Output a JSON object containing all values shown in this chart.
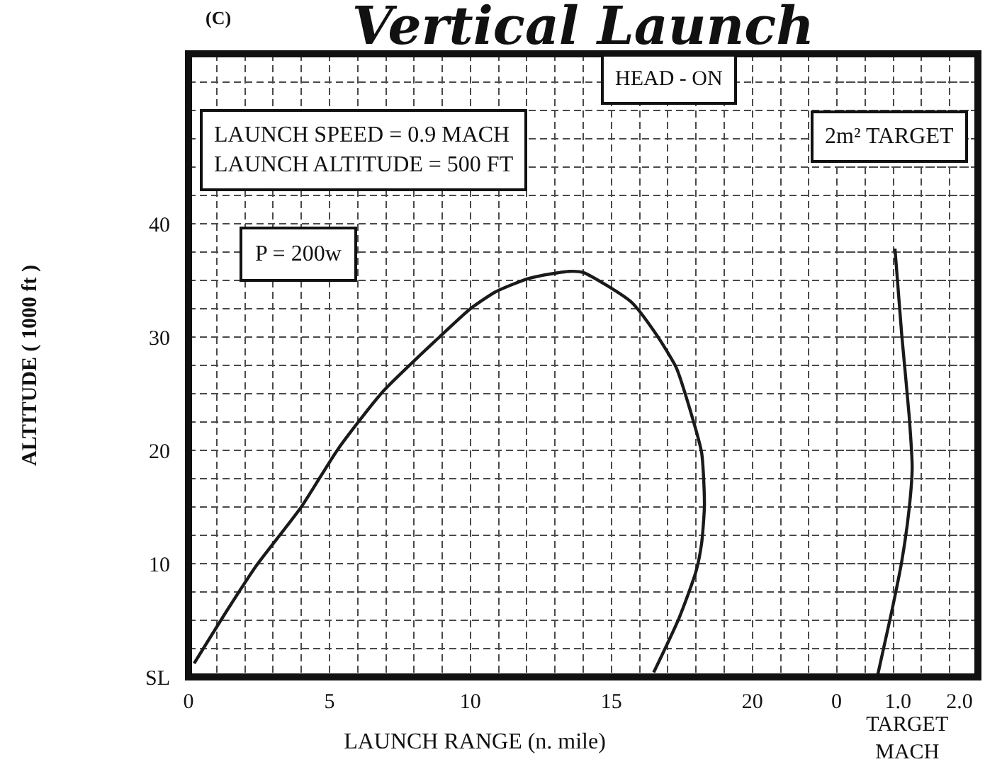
{
  "chart_data": {
    "type": "line",
    "title": "Vertical Launch",
    "xlabel": "LAUNCH RANGE (n. mile)",
    "x2label": "TARGET\nMACH",
    "ylabel": "ALTITUDE ( 1000 ft )",
    "annotations": [
      "(C)",
      "HEAD - ON",
      "LAUNCH SPEED = 0.9 MACH\nLAUNCH ALTITUDE = 500 FT",
      "2m² TARGET",
      "P = 200w"
    ],
    "xlim": [
      0,
      28
    ],
    "xticks": [
      0,
      {
        "value": 1,
        "label": null
      },
      {
        "value": 2,
        "label": null
      },
      {
        "value": 3,
        "label": null
      },
      {
        "value": 4,
        "label": null
      },
      5,
      {
        "value": 6,
        "label": null
      },
      {
        "value": 7,
        "label": null
      },
      {
        "value": 8,
        "label": null
      },
      {
        "value": 9,
        "label": null
      },
      10,
      {
        "value": 11,
        "label": null
      },
      {
        "value": 12,
        "label": null
      },
      {
        "value": 13,
        "label": null
      },
      {
        "value": 14,
        "label": null
      },
      15,
      {
        "value": 16,
        "label": null
      },
      {
        "value": 17,
        "label": null
      },
      {
        "value": 18,
        "label": null
      },
      {
        "value": 19,
        "label": null
      },
      20,
      {
        "value": 21,
        "label": null
      },
      {
        "value": 22,
        "label": null
      },
      {
        "value": 23,
        "label": null
      },
      {
        "value": 24,
        "label": null
      },
      {
        "value": 25,
        "label": null
      },
      {
        "value": 26,
        "label": null
      },
      {
        "value": 27,
        "label": null
      }
    ],
    "x2lim": [
      0,
      2.3
    ],
    "x2ticks": [
      0,
      {
        "value": 1,
        "label": "1.0"
      },
      {
        "value": 2,
        "label": "2.0"
      }
    ],
    "ylim": [
      0,
      55
    ],
    "yticks": [
      {
        "value": 0,
        "label": "SL"
      },
      {
        "value": 2.5,
        "label": null
      },
      {
        "value": 5,
        "label": null
      },
      {
        "value": 7.5,
        "label": null
      },
      10,
      {
        "value": 12.5,
        "label": null
      },
      {
        "value": 15,
        "label": null
      },
      {
        "value": 17.5,
        "label": null
      },
      20,
      {
        "value": 22.5,
        "label": null
      },
      {
        "value": 25,
        "label": null
      },
      {
        "value": 27.5,
        "label": null
      },
      30,
      {
        "value": 32.5,
        "label": null
      },
      {
        "value": 35,
        "label": null
      },
      {
        "value": 37.5,
        "label": null
      },
      40,
      {
        "value": 42.5,
        "label": null
      },
      {
        "value": 45,
        "label": null
      },
      {
        "value": 47.5,
        "label": null
      },
      {
        "value": 50,
        "label": null
      },
      {
        "value": 52.5,
        "label": null
      }
    ],
    "grid": true,
    "series": [
      {
        "color": "#1a1a1a",
        "x": [
          0.2,
          1.4,
          2.4,
          4.0,
          5.3,
          6.9,
          8.9,
          10.0,
          10.9,
          12.1,
          13.5,
          14.0,
          15.7,
          16.6,
          17.3,
          17.8,
          18.2,
          18.3,
          18.2,
          18.0,
          17.4,
          16.5
        ],
        "values": [
          1.2,
          6.0,
          9.8,
          15.0,
          20.1,
          25.2,
          30.0,
          32.5,
          34.0,
          35.2,
          35.8,
          35.7,
          33.1,
          30.2,
          27.3,
          23.5,
          19.8,
          15.2,
          11.8,
          9.3,
          5.2,
          0.4
        ]
      },
      {
        "axis": "x2",
        "color": "#1a1a1a",
        "x": [
          0.67,
          0.89,
          1.06,
          1.18,
          1.23,
          1.18,
          1.06,
          0.95
        ],
        "values": [
          0.2,
          5.6,
          10.2,
          14.8,
          18.5,
          23.1,
          30.2,
          37.8
        ]
      }
    ]
  }
}
